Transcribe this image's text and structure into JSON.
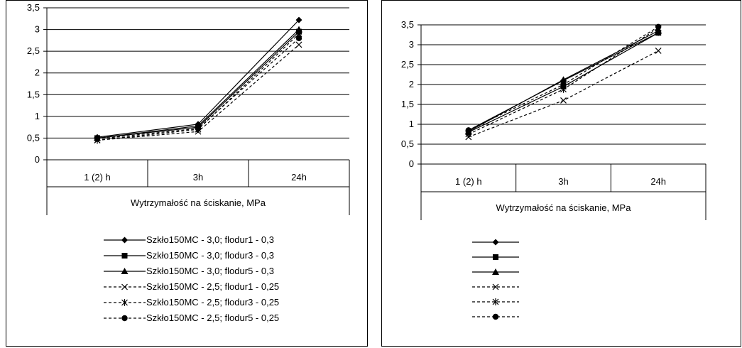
{
  "colors": {
    "line": "#000000",
    "background": "#ffffff",
    "grid": "#000000"
  },
  "chart_data": [
    {
      "type": "line",
      "categories": [
        "1 (2) h",
        "3h",
        "24h"
      ],
      "xlabel": "Wytrzymałość na ściskanie, MPa",
      "ylabel": "",
      "ylim": [
        0,
        3.5
      ],
      "yticks": [
        "0",
        "0,5",
        "1",
        "1,5",
        "2",
        "2,5",
        "3",
        "3,5"
      ],
      "grid": true,
      "legend_position": "bottom",
      "series": [
        {
          "name": "Szkło150MC - 3,0; flodur1 -  0,3",
          "values": [
            0.52,
            0.82,
            3.22
          ],
          "marker": "diamond",
          "dash": "solid"
        },
        {
          "name": "Szkło150MC - 3,0; flodur3  - 0,3",
          "values": [
            0.5,
            0.75,
            2.95
          ],
          "marker": "square",
          "dash": "solid"
        },
        {
          "name": "Szkło150MC - 3,0; flodur5 - 0,3",
          "values": [
            0.5,
            0.78,
            3.0
          ],
          "marker": "triangle",
          "dash": "solid"
        },
        {
          "name": "Szkło150MC - 2,5; flodur1 - 0,25",
          "values": [
            0.45,
            0.65,
            2.65
          ],
          "marker": "x",
          "dash": "dashed"
        },
        {
          "name": "Szkło150MC - 2,5; flodur3 - 0,25",
          "values": [
            0.45,
            0.7,
            2.9
          ],
          "marker": "star",
          "dash": "dashed"
        },
        {
          "name": "Szkło150MC - 2,5; flodur5 - 0,25",
          "values": [
            0.48,
            0.72,
            2.8
          ],
          "marker": "circle",
          "dash": "dashed"
        }
      ]
    },
    {
      "type": "line",
      "categories": [
        "1 (2) h",
        "3h",
        "24h"
      ],
      "xlabel": "Wytrzymałość na ściskanie, MPa",
      "ylabel": "",
      "ylim": [
        0,
        3.5
      ],
      "yticks": [
        "0",
        "0,5",
        "1",
        "1,5",
        "2",
        "2,5",
        "3",
        "3,5"
      ],
      "grid": true,
      "legend_position": "bottom",
      "series": [
        {
          "name": "",
          "values": [
            0.85,
            2.1,
            3.3
          ],
          "marker": "diamond",
          "dash": "solid"
        },
        {
          "name": "",
          "values": [
            0.8,
            1.95,
            3.3
          ],
          "marker": "square",
          "dash": "solid"
        },
        {
          "name": "",
          "values": [
            0.82,
            2.12,
            3.35
          ],
          "marker": "triangle",
          "dash": "solid"
        },
        {
          "name": "",
          "values": [
            0.68,
            1.6,
            2.85
          ],
          "marker": "x",
          "dash": "dashed"
        },
        {
          "name": "",
          "values": [
            0.75,
            1.88,
            3.42
          ],
          "marker": "star",
          "dash": "dashed"
        },
        {
          "name": "",
          "values": [
            0.85,
            2.0,
            3.45
          ],
          "marker": "circle",
          "dash": "dashed"
        }
      ]
    }
  ]
}
